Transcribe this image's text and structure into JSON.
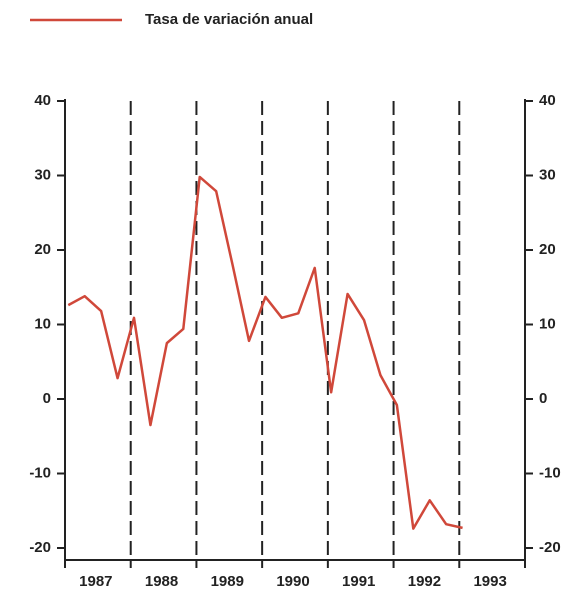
{
  "chart_data": {
    "type": "line",
    "series": [
      {
        "name": "Tasa de variación anual",
        "color": "#d0483a",
        "x": [
          1987.05,
          1987.3,
          1987.55,
          1987.8,
          1988.05,
          1988.3,
          1988.55,
          1988.8,
          1989.05,
          1989.3,
          1989.55,
          1989.8,
          1990.05,
          1990.3,
          1990.55,
          1990.8,
          1991.05,
          1991.3,
          1991.55,
          1991.8,
          1992.05,
          1992.3,
          1992.55,
          1992.8,
          1993.05
        ],
        "values": [
          12.6,
          13.8,
          11.8,
          2.8,
          10.9,
          -3.5,
          7.5,
          9.4,
          29.8,
          27.9,
          18.0,
          7.8,
          13.7,
          10.9,
          11.5,
          17.6,
          0.9,
          14.1,
          10.6,
          3.2,
          -0.8,
          -17.4,
          -13.6,
          -16.8,
          -17.3
        ]
      }
    ],
    "categories": [
      "1987",
      "1988",
      "1989",
      "1990",
      "1991",
      "1992",
      "1993"
    ],
    "xlim": [
      1987,
      1994
    ],
    "xticks": [
      1987,
      1988,
      1989,
      1990,
      1991,
      1992,
      1993,
      1994
    ],
    "ylim": [
      -20,
      40
    ],
    "yticks": [
      -20,
      -10,
      0,
      10,
      20,
      30,
      40
    ],
    "y2lim": [
      -20,
      40
    ],
    "y2ticks": [
      -20,
      -10,
      0,
      10,
      20,
      30,
      40
    ],
    "xgrid": true,
    "legend": "top"
  }
}
